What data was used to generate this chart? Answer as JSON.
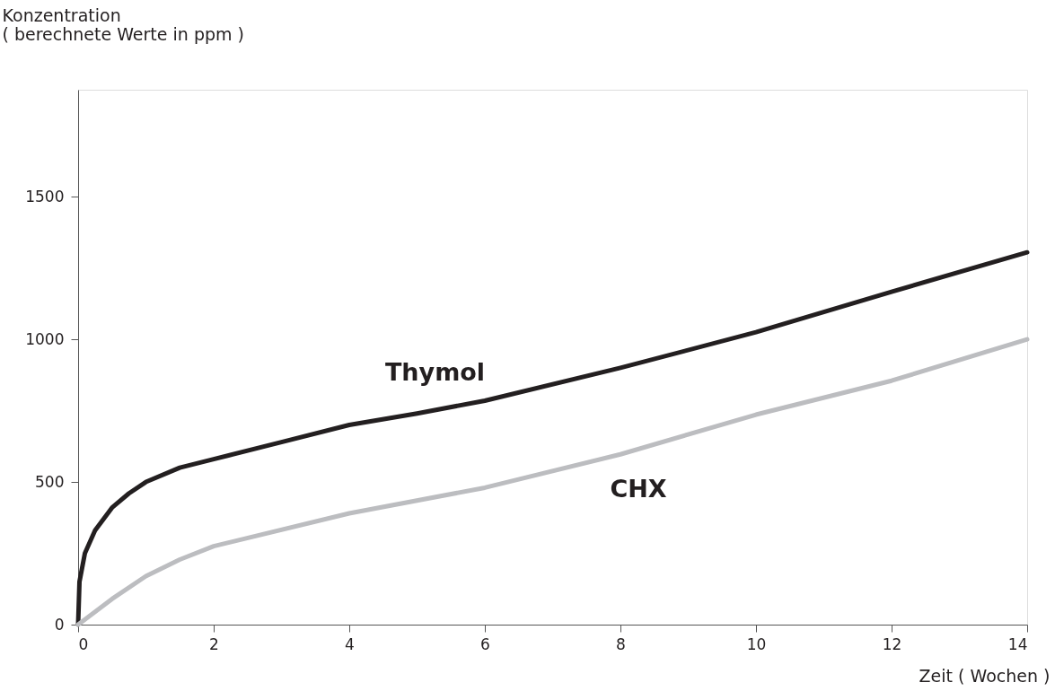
{
  "chart_data": {
    "type": "line",
    "xlabel": "Zeit ( Wochen )",
    "ylabel": "Konzentration\n( berechnete Werte in ppm )",
    "xlim": [
      0,
      14
    ],
    "xticks": [
      0,
      2,
      4,
      6,
      8,
      10,
      12,
      14
    ],
    "ylim": [
      0,
      1875
    ],
    "yticks": [
      0,
      500,
      1000,
      1500
    ],
    "grid": false,
    "series": [
      {
        "name": "Thymol",
        "color": "#231f20",
        "x": [
          0,
          0.02,
          0.1,
          0.25,
          0.5,
          0.75,
          1,
          1.5,
          2,
          3,
          4,
          5,
          6,
          8,
          10,
          12,
          14
        ],
        "values": [
          0,
          150,
          250,
          330,
          410,
          460,
          500,
          550,
          580,
          640,
          700,
          740,
          785,
          900,
          1025,
          1167,
          1305
        ]
      },
      {
        "name": "CHX",
        "color": "#bcbdc0",
        "x": [
          0,
          0.5,
          1,
          1.5,
          2,
          4,
          6,
          8,
          10,
          12,
          14
        ],
        "values": [
          0,
          90,
          170,
          228,
          275,
          390,
          480,
          597,
          736,
          855,
          1000
        ]
      }
    ]
  }
}
